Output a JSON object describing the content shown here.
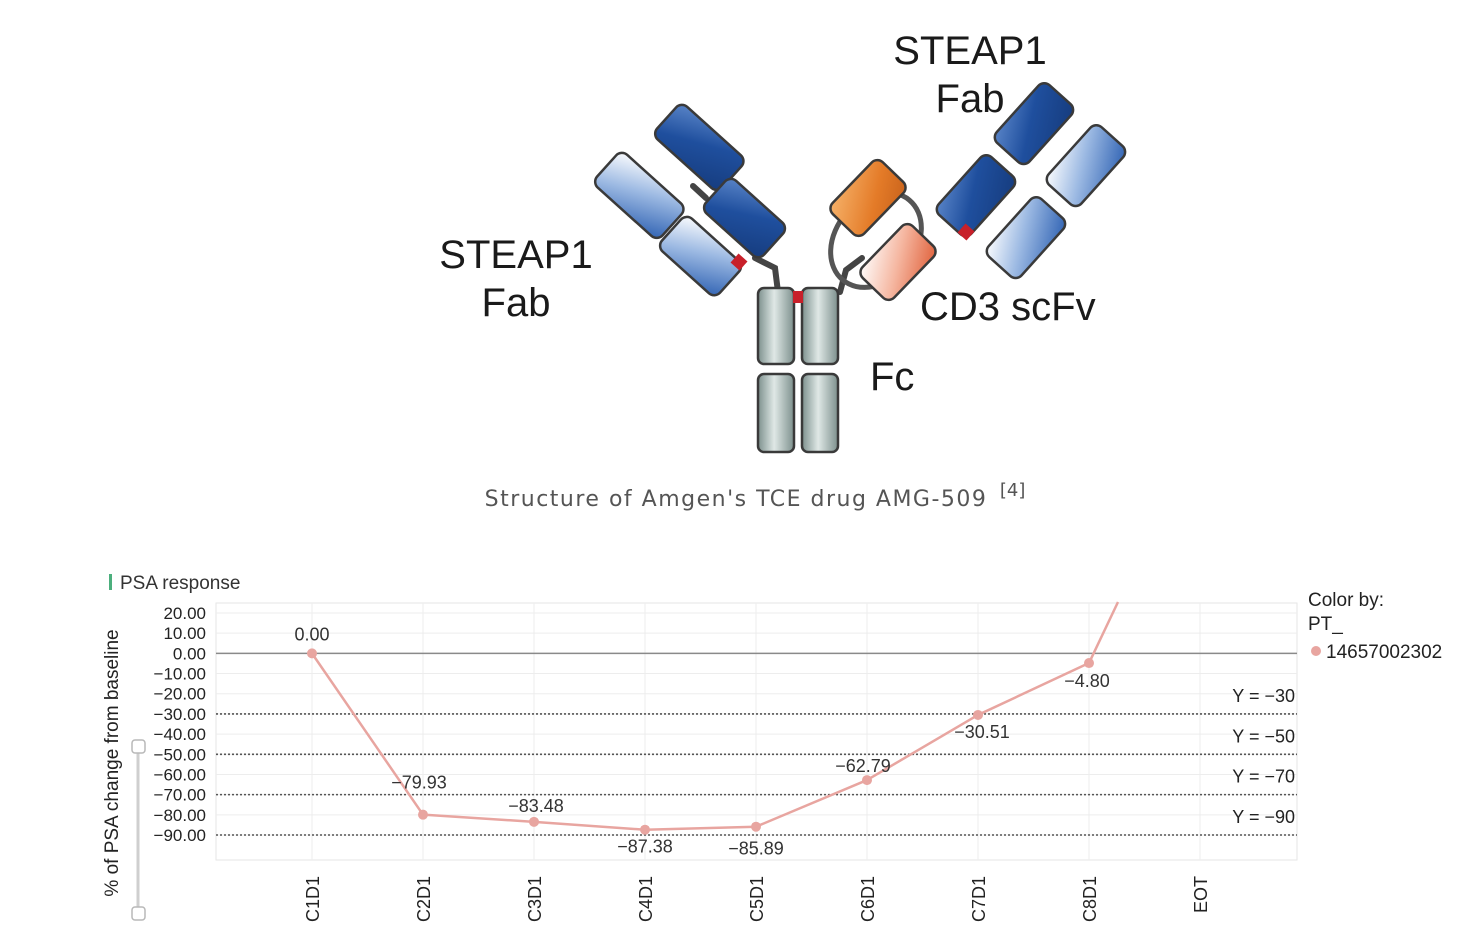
{
  "diagram": {
    "labels": {
      "fab_right_line1": "STEAP1",
      "fab_right_line2": "Fab",
      "fab_left_line1": "STEAP1",
      "fab_left_line2": "Fab",
      "scfv": "CD3 scFv",
      "fc": "Fc"
    },
    "colors": {
      "fab_blue": "#2456a8",
      "fab_light": "#8fb0dd",
      "scfv_orange": "#e37b2e",
      "scfv_light": "#f3b49a",
      "fc_grey": "#8fa3a0",
      "hinge_red": "#c8202a",
      "outline": "#3a3a3a"
    }
  },
  "caption": {
    "text": "Structure of Amgen's TCE drug AMG-509",
    "ref": "[4]"
  },
  "panel_title": "PSA response",
  "chart_data": {
    "type": "line",
    "title": "",
    "ylabel": "% of PSA change from baseline",
    "xlabel": "",
    "categories": [
      "C1D1",
      "C2D1",
      "C3D1",
      "C4D1",
      "C5D1",
      "C6D1",
      "C7D1",
      "C8D1",
      "EOT"
    ],
    "series": [
      {
        "name": "14657002302",
        "values": [
          0.0,
          -79.93,
          -83.48,
          -87.38,
          -85.89,
          -62.79,
          -30.51,
          -4.8,
          null
        ],
        "value_labels": [
          "0.00",
          "−79.93",
          "−83.48",
          "−87.38",
          "−85.89",
          "−62.79",
          "−30.51",
          "−4.80"
        ],
        "continues_above_top_after_index": 7,
        "color": "#e8a5a0"
      }
    ],
    "yticks": [
      20,
      10,
      0,
      -10,
      -20,
      -30,
      -40,
      -50,
      -60,
      -70,
      -80,
      -90
    ],
    "ytick_labels": [
      "20.00",
      "10.00",
      "0.00",
      "−10.00",
      "−20.00",
      "−30.00",
      "−40.00",
      "−50.00",
      "−60.00",
      "−70.00",
      "−80.00",
      "−90.00"
    ],
    "ylim": [
      -101,
      24
    ],
    "grid": true,
    "reference_lines": [
      {
        "y": -30,
        "label": "Y = −30"
      },
      {
        "y": -50,
        "label": "Y = −50"
      },
      {
        "y": -70,
        "label": "Y = −70"
      },
      {
        "y": -90,
        "label": "Y = −90"
      }
    ],
    "zero_line": true,
    "legend": {
      "title_line1": "Color by:",
      "title_line2": "PT_",
      "entries": [
        "14657002302"
      ],
      "position": "right"
    }
  }
}
